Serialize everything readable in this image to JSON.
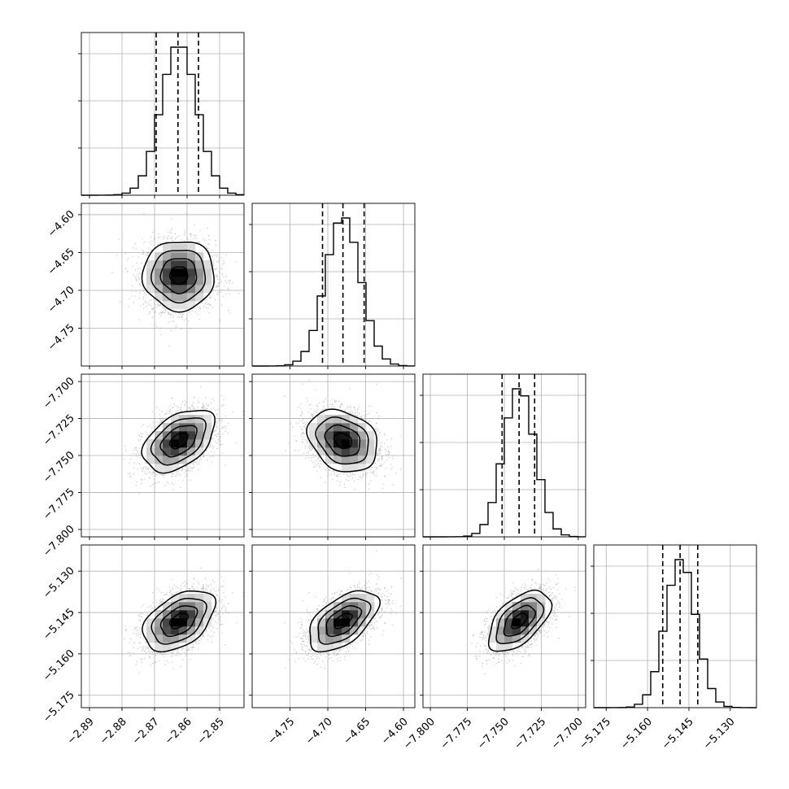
{
  "chart_data": {
    "type": "corner",
    "title": "",
    "parameters": [
      {
        "index": 0,
        "range": [
          -2.8925,
          -2.8425
        ],
        "ticks": [
          -2.89,
          -2.88,
          -2.87,
          -2.86,
          -2.85
        ],
        "tick_labels": [
          "−2.89",
          "−2.88",
          "−2.87",
          "−2.86",
          "−2.85"
        ],
        "mean": -2.8625,
        "std": 0.0055,
        "quantiles": [
          -2.8695,
          -2.8628,
          -2.8565
        ]
      },
      {
        "index": 1,
        "range": [
          -4.8,
          -4.585
        ],
        "ticks": [
          -4.75,
          -4.7,
          -4.65,
          -4.6
        ],
        "tick_labels": [
          "−4.75",
          "−4.70",
          "−4.65",
          "−4.60"
        ],
        "mean": -4.68,
        "std": 0.023,
        "quantiles": [
          -4.707,
          -4.68,
          -4.652
        ]
      },
      {
        "index": 2,
        "range": [
          -7.805,
          -7.695
        ],
        "ticks": [
          -7.8,
          -7.775,
          -7.75,
          -7.725,
          -7.7
        ],
        "tick_labels": [
          "−7.800",
          "−7.775",
          "−7.750",
          "−7.725",
          "−7.700"
        ],
        "mean": -7.74,
        "std": 0.0105,
        "quantiles": [
          -7.7515,
          -7.74,
          -7.7295
        ]
      },
      {
        "index": 3,
        "range": [
          -5.1795,
          -5.1205
        ],
        "ticks": [
          -5.175,
          -5.16,
          -5.145,
          -5.13
        ],
        "tick_labels": [
          "−5.175",
          "−5.160",
          "−5.145",
          "−5.130"
        ],
        "mean": -5.148,
        "std": 0.0055,
        "quantiles": [
          -5.1545,
          -5.1482,
          -5.1418
        ]
      }
    ],
    "correlations": [
      {
        "pair": [
          0,
          1
        ],
        "rho": 0.0
      },
      {
        "pair": [
          0,
          2
        ],
        "rho": 0.45
      },
      {
        "pair": [
          1,
          2
        ],
        "rho": -0.25
      },
      {
        "pair": [
          0,
          3
        ],
        "rho": 0.45
      },
      {
        "pair": [
          1,
          3
        ],
        "rho": 0.55
      },
      {
        "pair": [
          2,
          3
        ],
        "rho": 0.55
      }
    ],
    "histogram_bins": 20,
    "contour_levels_sigma": [
      0.5,
      1.0,
      1.5,
      2.0
    ],
    "dashed_quantiles": [
      0.16,
      0.5,
      0.84
    ],
    "grid": true,
    "legend": "none",
    "colors": {
      "line": "#000000",
      "grid": "#b0b0b0",
      "points": "#7f7f7f"
    }
  }
}
